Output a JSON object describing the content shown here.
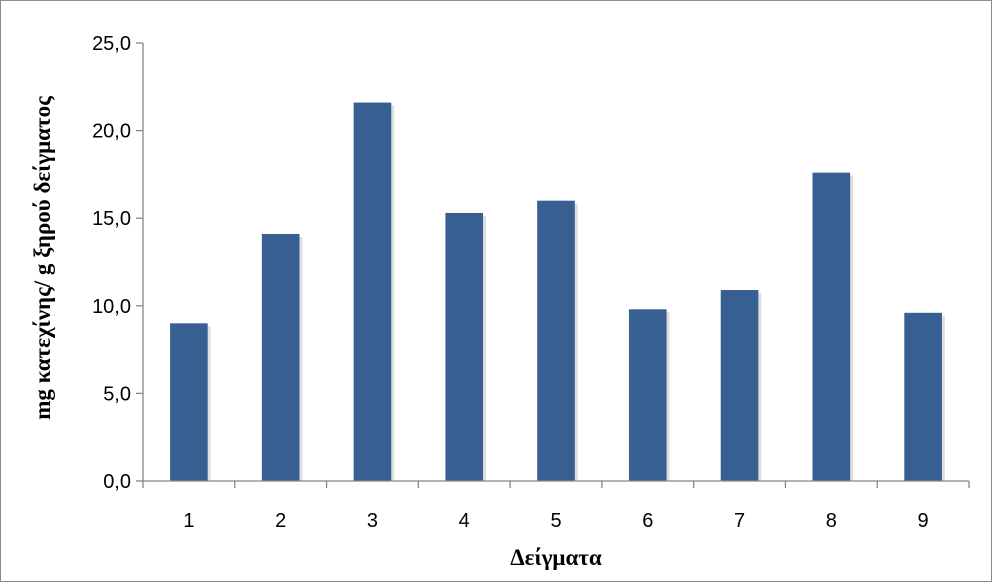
{
  "chart_data": {
    "type": "bar",
    "categories": [
      "1",
      "2",
      "3",
      "4",
      "5",
      "6",
      "7",
      "8",
      "9"
    ],
    "values": [
      9.0,
      14.1,
      21.6,
      15.3,
      16.0,
      9.8,
      10.9,
      17.6,
      9.6
    ],
    "yticks": [
      "0,0",
      "5,0",
      "10,0",
      "15,0",
      "20,0",
      "25,0"
    ],
    "ylim": [
      0,
      25
    ],
    "xlabel": "Δείγματα",
    "ylabel": "mg κατεχίνης/ g ξηρού δείγματος",
    "grid": false,
    "legend": "none",
    "colors": {
      "bar": "#375f91",
      "axis": "#868686"
    }
  }
}
